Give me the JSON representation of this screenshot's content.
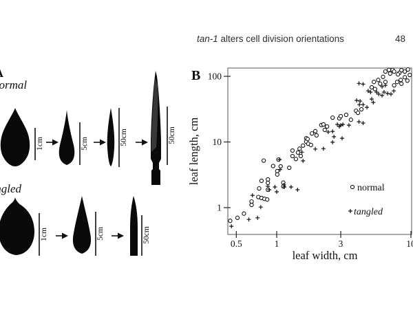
{
  "header": {
    "title_italic": "tan-1",
    "title_rest": " alters cell division orientations",
    "page_number": "48"
  },
  "panel_a": {
    "label": "A",
    "normal": {
      "label": "normal",
      "bars": [
        "1cm",
        "5cm",
        "50cm",
        "50cm"
      ]
    },
    "tangled": {
      "label": "tangled",
      "bars": [
        "1cm",
        "5cm",
        "50cm"
      ]
    }
  },
  "panel_b": {
    "label": "B",
    "xlabel": "leaf width, cm",
    "ylabel": "leaf length, cm",
    "legend": [
      {
        "marker": "circle",
        "label": "normal"
      },
      {
        "marker": "plus",
        "label": "tangled"
      }
    ]
  },
  "chart_data": {
    "type": "scatter",
    "title": "",
    "xlabel": "leaf width, cm",
    "ylabel": "leaf length, cm",
    "x_scale": "log",
    "y_scale": "log",
    "xlim": [
      0.43,
      10.5
    ],
    "ylim": [
      0.4,
      140
    ],
    "x_ticks": [
      0.5,
      1,
      3,
      10
    ],
    "y_ticks": [
      1,
      10,
      100
    ],
    "grid": false,
    "legend_position": "inside lower right",
    "series": [
      {
        "name": "normal",
        "marker": "circle",
        "points": [
          [
            0.45,
            0.63
          ],
          [
            0.51,
            0.7
          ],
          [
            0.57,
            0.81
          ],
          [
            0.65,
            1.1
          ],
          [
            0.65,
            1.24
          ],
          [
            0.73,
            1.45
          ],
          [
            0.77,
            1.4
          ],
          [
            0.81,
            1.36
          ],
          [
            0.85,
            1.33
          ],
          [
            0.74,
            1.96
          ],
          [
            0.77,
            2.56
          ],
          [
            0.86,
            2.69
          ],
          [
            0.86,
            2.38
          ],
          [
            0.86,
            1.87
          ],
          [
            0.8,
            5.2
          ],
          [
            0.94,
            4.3
          ],
          [
            1.01,
            3.6
          ],
          [
            1.01,
            3.2
          ],
          [
            1.03,
            5.4
          ],
          [
            1.07,
            4.25
          ],
          [
            1.12,
            2.4
          ],
          [
            1.12,
            2.1
          ],
          [
            1.24,
            4.05
          ],
          [
            1.31,
            7.4
          ],
          [
            1.31,
            6.1
          ],
          [
            1.39,
            5.5
          ],
          [
            1.44,
            6.9
          ],
          [
            1.48,
            7.9
          ],
          [
            1.51,
            6.1
          ],
          [
            1.57,
            8.8
          ],
          [
            1.66,
            11.4
          ],
          [
            1.66,
            10.1
          ],
          [
            1.7,
            11.1
          ],
          [
            1.72,
            9.4
          ],
          [
            1.8,
            9.0
          ],
          [
            1.83,
            13.5
          ],
          [
            1.94,
            14.6
          ],
          [
            1.98,
            12.6
          ],
          [
            2.15,
            18.1
          ],
          [
            2.23,
            18.5
          ],
          [
            2.28,
            15.3
          ],
          [
            2.37,
            17.2
          ],
          [
            2.61,
            23.5
          ],
          [
            2.93,
            22.9
          ],
          [
            3.0,
            24.7
          ],
          [
            3.29,
            25.9
          ],
          [
            3.57,
            21.8
          ],
          [
            3.9,
            29.9
          ],
          [
            4.03,
            27.8
          ],
          [
            4.28,
            31.4
          ],
          [
            5.1,
            68
          ],
          [
            5.3,
            82
          ],
          [
            5.4,
            64
          ],
          [
            5.7,
            88
          ],
          [
            5.9,
            77
          ],
          [
            6.2,
            98
          ],
          [
            6.45,
            82
          ],
          [
            6.45,
            118
          ],
          [
            6.85,
            125
          ],
          [
            7.3,
            125
          ],
          [
            7.5,
            118
          ],
          [
            7.5,
            73
          ],
          [
            7.9,
            82
          ],
          [
            8.4,
            88
          ],
          [
            8.5,
            77
          ],
          [
            9.0,
            97
          ],
          [
            9.4,
            86
          ],
          [
            9.8,
            105
          ],
          [
            8.2,
            113
          ],
          [
            8.5,
            124
          ],
          [
            9.0,
            118
          ],
          [
            9.5,
            127
          ],
          [
            8.0,
            107
          ],
          [
            7.0,
            110
          ]
        ]
      },
      {
        "name": "tangled",
        "marker": "plus",
        "points": [
          [
            0.46,
            0.52
          ],
          [
            0.62,
            0.66
          ],
          [
            0.72,
            0.7
          ],
          [
            0.66,
            1.54
          ],
          [
            0.76,
            1.02
          ],
          [
            0.86,
            2.11
          ],
          [
            0.88,
            1.87
          ],
          [
            0.97,
            2.06
          ],
          [
            1.0,
            1.74
          ],
          [
            1.13,
            2.22
          ],
          [
            1.05,
            5.4
          ],
          [
            1.06,
            3.8
          ],
          [
            1.14,
            2.06
          ],
          [
            1.28,
            2.06
          ],
          [
            1.43,
            1.87
          ],
          [
            1.54,
            7.0
          ],
          [
            1.57,
            5.15
          ],
          [
            1.94,
            7.8
          ],
          [
            2.23,
            7.9
          ],
          [
            2.61,
            9.9
          ],
          [
            2.67,
            12.0
          ],
          [
            2.83,
            18.5
          ],
          [
            3.0,
            18.0
          ],
          [
            3.07,
            11.4
          ],
          [
            2.42,
            14.2
          ],
          [
            2.61,
            14.5
          ],
          [
            2.93,
            17.2
          ],
          [
            3.11,
            18.5
          ],
          [
            3.45,
            18.0
          ],
          [
            4.1,
            20.3
          ],
          [
            4.4,
            19.4
          ],
          [
            3.94,
            43
          ],
          [
            4.18,
            42
          ],
          [
            4.13,
            37
          ],
          [
            4.4,
            37
          ],
          [
            4.7,
            33.7
          ],
          [
            5.1,
            45
          ],
          [
            5.24,
            40
          ],
          [
            4.8,
            60
          ],
          [
            5.0,
            57.5
          ],
          [
            5.55,
            57.5
          ],
          [
            5.75,
            53.5
          ],
          [
            6.1,
            51
          ],
          [
            6.3,
            57.5
          ],
          [
            6.7,
            54.7
          ],
          [
            7.1,
            53.5
          ],
          [
            7.45,
            60
          ],
          [
            6.1,
            69.7
          ],
          [
            6.45,
            73
          ],
          [
            4.4,
            76
          ],
          [
            4.1,
            78
          ]
        ]
      }
    ]
  }
}
